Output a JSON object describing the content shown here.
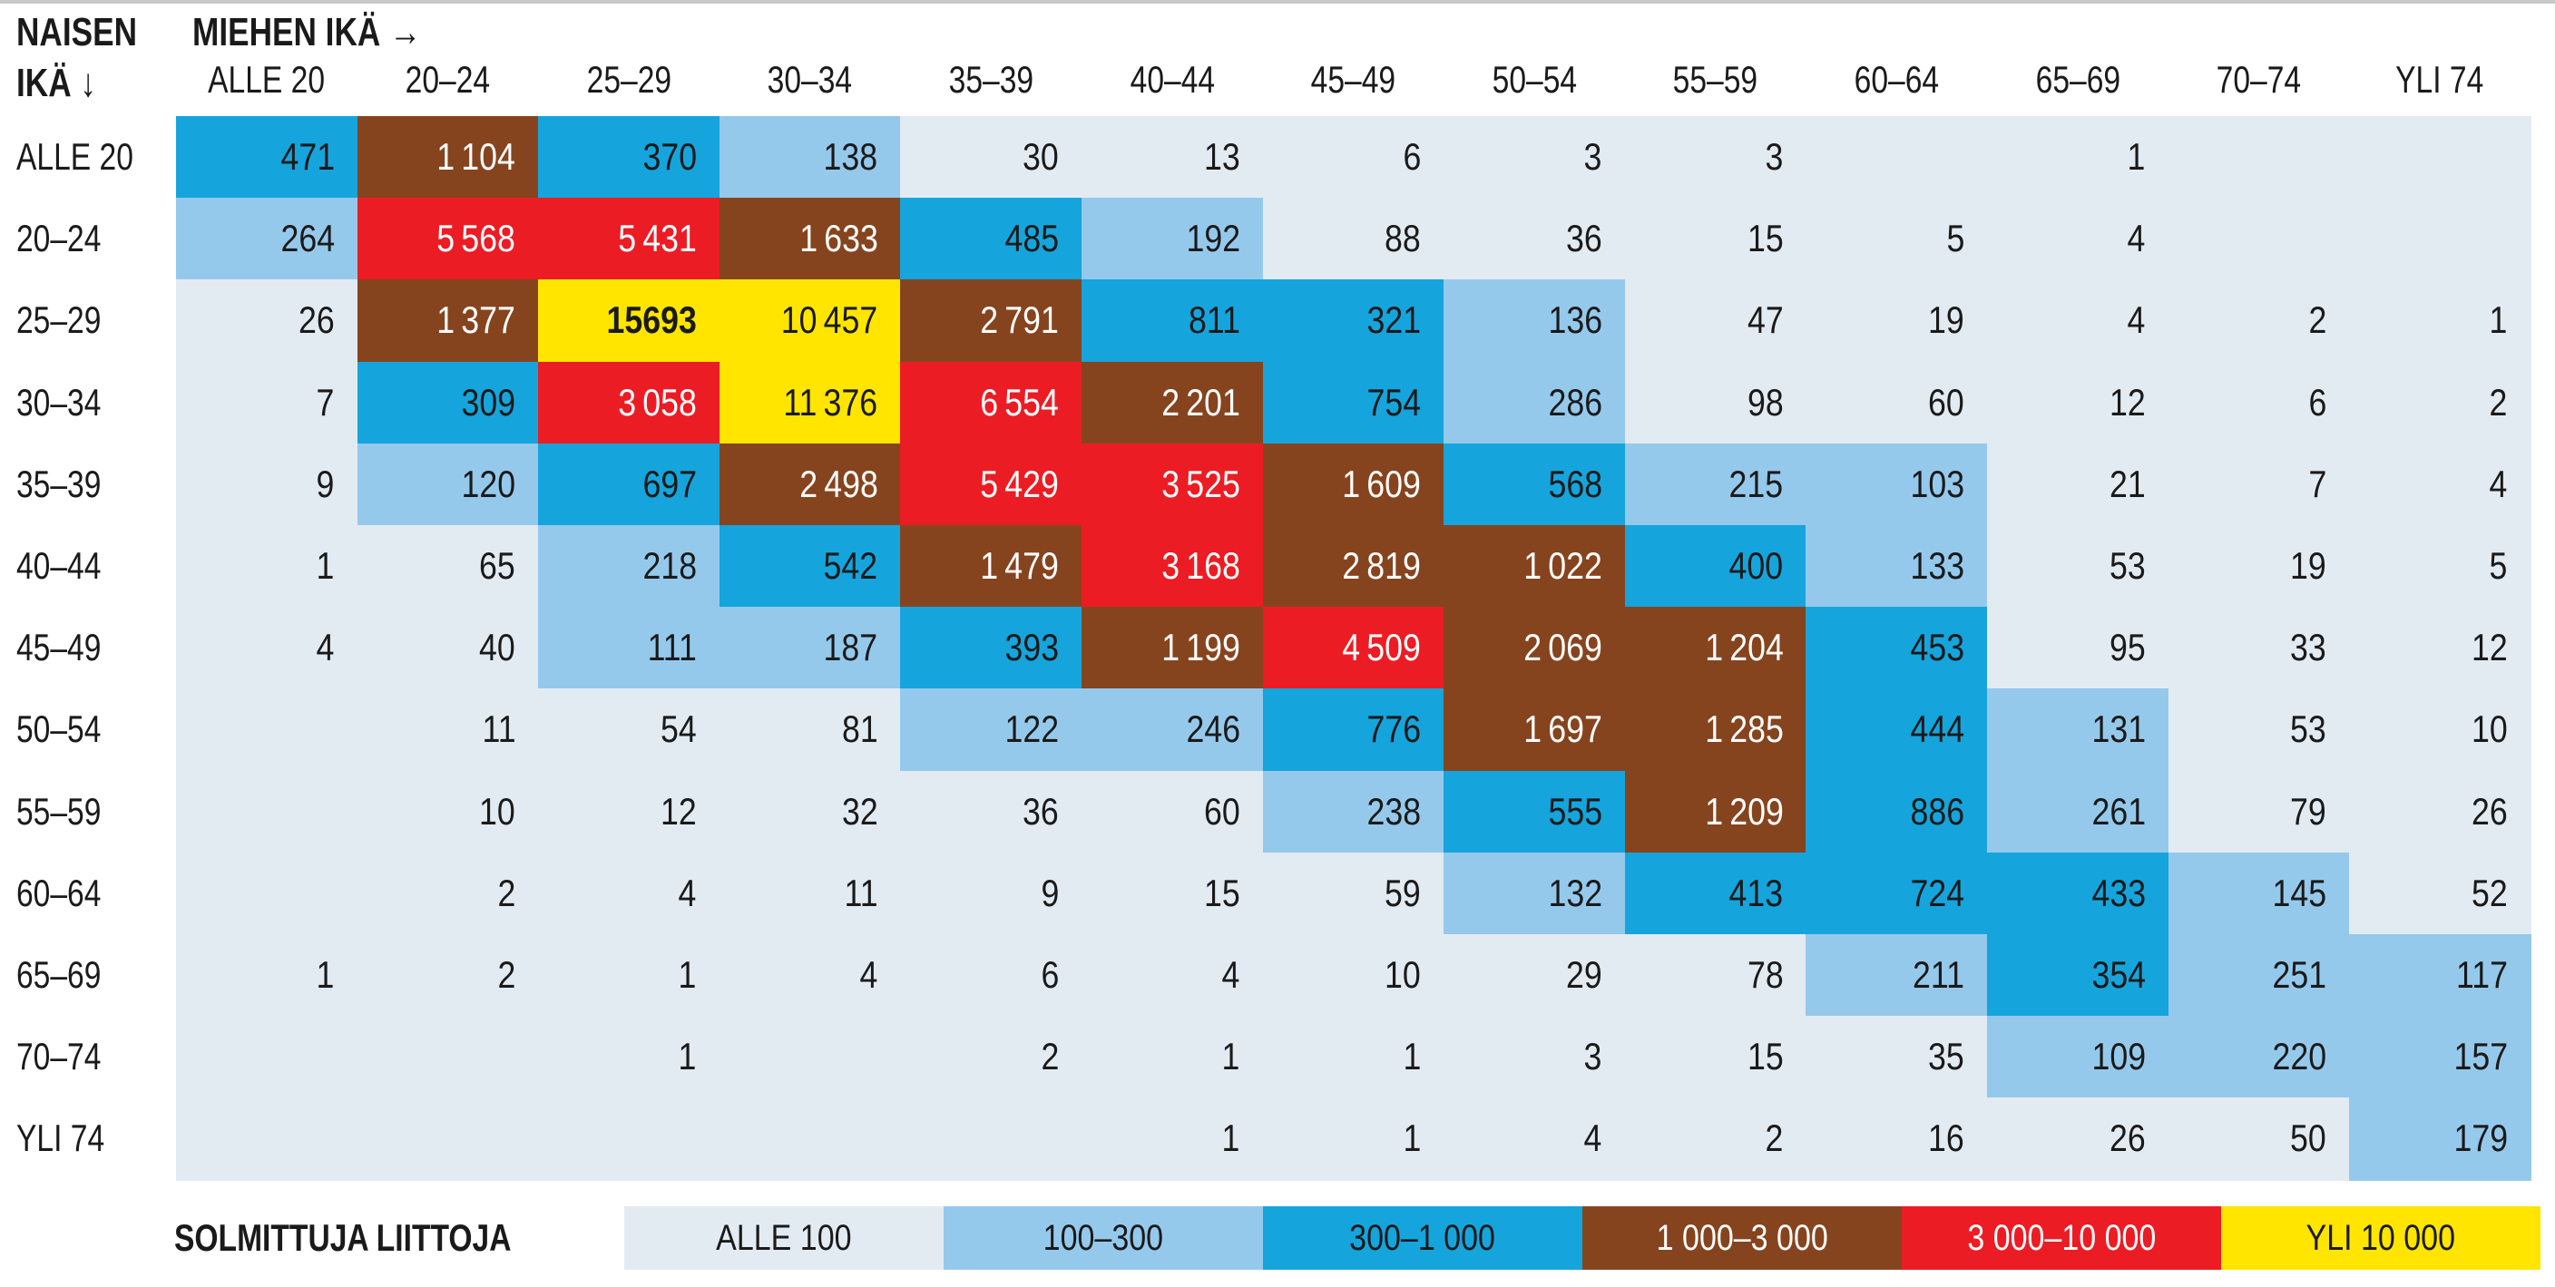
{
  "chart_data": {
    "type": "heatmap",
    "title": "",
    "row_axis_label": "NAISEN IKÄ ↓",
    "col_axis_label": "MIEHEN IKÄ →",
    "columns": [
      "ALLE 20",
      "20–24",
      "25–29",
      "30–34",
      "35–39",
      "40–44",
      "45–49",
      "50–54",
      "55–59",
      "60–64",
      "65–69",
      "70–74",
      "YLI 74"
    ],
    "rows": [
      "ALLE 20",
      "20–24",
      "25–29",
      "30–34",
      "35–39",
      "40–44",
      "45–49",
      "50–54",
      "55–59",
      "60–64",
      "65–69",
      "70–74",
      "YLI 74"
    ],
    "values": [
      [
        471,
        1104,
        370,
        138,
        30,
        13,
        6,
        3,
        3,
        null,
        1,
        null,
        null
      ],
      [
        264,
        5568,
        5431,
        1633,
        485,
        192,
        88,
        36,
        15,
        5,
        4,
        null,
        null
      ],
      [
        26,
        1377,
        15693,
        10457,
        2791,
        811,
        321,
        136,
        47,
        19,
        4,
        2,
        1
      ],
      [
        7,
        309,
        3058,
        11376,
        6554,
        2201,
        754,
        286,
        98,
        60,
        12,
        6,
        2
      ],
      [
        9,
        120,
        697,
        2498,
        5429,
        3525,
        1609,
        568,
        215,
        103,
        21,
        7,
        4
      ],
      [
        1,
        65,
        218,
        542,
        1479,
        3168,
        2819,
        1022,
        400,
        133,
        53,
        19,
        5
      ],
      [
        4,
        40,
        111,
        187,
        393,
        1199,
        4509,
        2069,
        1204,
        453,
        95,
        33,
        12
      ],
      [
        null,
        11,
        54,
        81,
        122,
        246,
        776,
        1697,
        1285,
        444,
        131,
        53,
        10
      ],
      [
        null,
        10,
        12,
        32,
        36,
        60,
        238,
        555,
        1209,
        886,
        261,
        79,
        26
      ],
      [
        null,
        2,
        4,
        11,
        9,
        15,
        59,
        132,
        413,
        724,
        433,
        145,
        52
      ],
      [
        1,
        2,
        1,
        4,
        6,
        4,
        10,
        29,
        78,
        211,
        354,
        251,
        117
      ],
      [
        null,
        null,
        1,
        null,
        2,
        1,
        1,
        3,
        15,
        35,
        109,
        220,
        157
      ],
      [
        null,
        null,
        null,
        null,
        null,
        1,
        1,
        4,
        2,
        16,
        26,
        50,
        179
      ]
    ],
    "highlighted_max": 15693,
    "legend": {
      "title": "SOLMITTUJA LIITTOJA",
      "position": "bottom",
      "bins": [
        {
          "label": "ALLE 100",
          "min": 0,
          "max": 100,
          "color": "#e3ebf2",
          "text_color": "#1a1a1a"
        },
        {
          "label": "100–300",
          "min": 100,
          "max": 300,
          "color": "#95c9ec",
          "text_color": "#1a1a1a"
        },
        {
          "label": "300–1 000",
          "min": 300,
          "max": 1000,
          "color": "#16a4dc",
          "text_color": "#1a1a1a"
        },
        {
          "label": "1 000–3 000",
          "min": 1000,
          "max": 3000,
          "color": "#86441e",
          "text_color": "#ffffff"
        },
        {
          "label": "3 000–10 000",
          "min": 3000,
          "max": 10000,
          "color": "#ec1c24",
          "text_color": "#ffffff"
        },
        {
          "label": "YLI 10 000",
          "min": 10000,
          "max": null,
          "color": "#ffe500",
          "text_color": "#1a1a1a"
        }
      ]
    }
  }
}
